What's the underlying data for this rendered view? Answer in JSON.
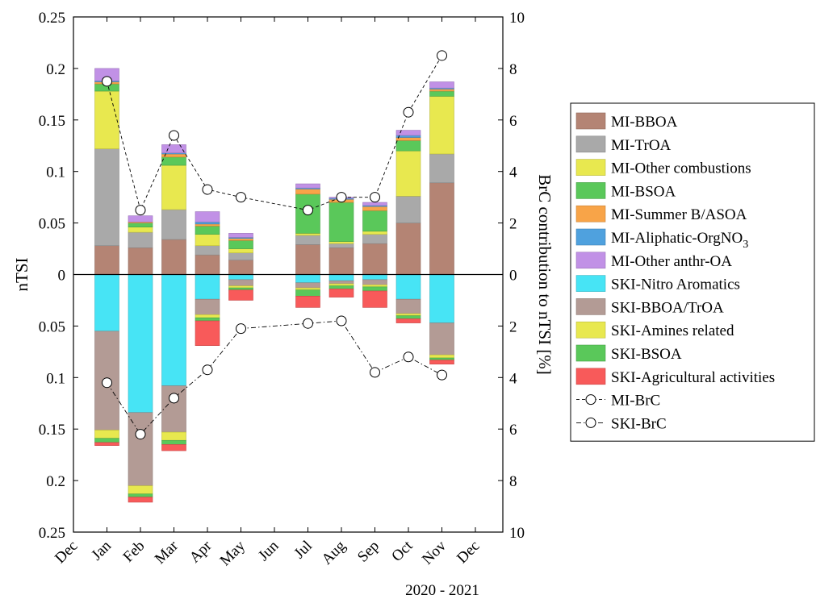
{
  "chart_data": {
    "type": "bar",
    "months": [
      "Dec",
      "Jan",
      "Feb",
      "Mar",
      "Apr",
      "May",
      "Jun",
      "Jul",
      "Aug",
      "Sep",
      "Oct",
      "Nov",
      "Dec"
    ],
    "xlabel": "2020 - 2021",
    "ylabel_left": "nTSI",
    "ylabel_right": "BrC contribution to nTSI [%]",
    "yticks_left": [
      "0.25",
      "0.2",
      "0.15",
      "0.1",
      "0.05",
      "0",
      "0.05",
      "0.1",
      "0.15",
      "0.2",
      "0.25"
    ],
    "yticks_right": [
      "10",
      "8",
      "6",
      "4",
      "2",
      "0",
      "2",
      "4",
      "6",
      "8",
      "10"
    ],
    "ylim_left": [
      -0.25,
      0.25
    ],
    "ylim_right": [
      -10,
      10
    ],
    "mi_components": [
      {
        "name": "MI-BBOA",
        "color": "#b48474"
      },
      {
        "name": "MI-TrOA",
        "color": "#a9a9a9"
      },
      {
        "name": "MI-Other combustions",
        "color": "#e8e84f"
      },
      {
        "name": "MI-BSOA",
        "color": "#5ac85a"
      },
      {
        "name": "MI-Summer B/ASOA",
        "color": "#f8a448"
      },
      {
        "name": "MI-Aliphatic-OrgNO3",
        "color": "#4fa1de"
      },
      {
        "name": "MI-Other anthr-OA",
        "color": "#c191e6"
      }
    ],
    "ski_components": [
      {
        "name": "SKI-Nitro Aromatics",
        "color": "#47e4f5"
      },
      {
        "name": "SKI-BBOA/TrOA",
        "color": "#b39b95"
      },
      {
        "name": "SKI-Amines related",
        "color": "#e8e84f"
      },
      {
        "name": "SKI-BSOA",
        "color": "#5ac85a"
      },
      {
        "name": "SKI-Agricultural activities",
        "color": "#f85a5a"
      }
    ],
    "mi_bars": [
      {
        "month": "Jan",
        "values": [
          0.028,
          0.094,
          0.056,
          0.007,
          0.002,
          0.001,
          0.012
        ]
      },
      {
        "month": "Feb",
        "values": [
          0.026,
          0.015,
          0.005,
          0.004,
          0.001,
          0.0,
          0.006
        ]
      },
      {
        "month": "Mar",
        "values": [
          0.034,
          0.029,
          0.043,
          0.008,
          0.003,
          0.001,
          0.008
        ]
      },
      {
        "month": "Apr",
        "values": [
          0.019,
          0.009,
          0.011,
          0.008,
          0.002,
          0.002,
          0.01
        ]
      },
      {
        "month": "May",
        "values": [
          0.014,
          0.007,
          0.004,
          0.008,
          0.002,
          0.001,
          0.004
        ]
      },
      {
        "month": "Jul",
        "values": [
          0.029,
          0.009,
          0.002,
          0.038,
          0.005,
          0.001,
          0.004
        ]
      },
      {
        "month": "Aug",
        "values": [
          0.026,
          0.004,
          0.002,
          0.038,
          0.003,
          0.001,
          0.001
        ]
      },
      {
        "month": "Sep",
        "values": [
          0.03,
          0.009,
          0.003,
          0.02,
          0.004,
          0.001,
          0.003
        ]
      },
      {
        "month": "Oct",
        "values": [
          0.05,
          0.026,
          0.044,
          0.01,
          0.003,
          0.002,
          0.005
        ]
      },
      {
        "month": "Nov",
        "values": [
          0.089,
          0.028,
          0.056,
          0.005,
          0.002,
          0.001,
          0.006
        ]
      }
    ],
    "ski_bars": [
      {
        "month": "Jan",
        "values": [
          0.055,
          0.096,
          0.008,
          0.004,
          0.003
        ]
      },
      {
        "month": "Feb",
        "values": [
          0.134,
          0.071,
          0.008,
          0.003,
          0.005
        ]
      },
      {
        "month": "Mar",
        "values": [
          0.108,
          0.045,
          0.008,
          0.004,
          0.006
        ]
      },
      {
        "month": "Apr",
        "values": [
          0.024,
          0.015,
          0.003,
          0.003,
          0.024
        ]
      },
      {
        "month": "May",
        "values": [
          0.005,
          0.006,
          0.002,
          0.002,
          0.01
        ]
      },
      {
        "month": "Jul",
        "values": [
          0.008,
          0.005,
          0.002,
          0.006,
          0.011
        ]
      },
      {
        "month": "Aug",
        "values": [
          0.006,
          0.003,
          0.002,
          0.003,
          0.008
        ]
      },
      {
        "month": "Sep",
        "values": [
          0.005,
          0.005,
          0.002,
          0.004,
          0.016
        ]
      },
      {
        "month": "Oct",
        "values": [
          0.024,
          0.014,
          0.002,
          0.003,
          0.004
        ]
      },
      {
        "month": "Nov",
        "values": [
          0.047,
          0.031,
          0.003,
          0.002,
          0.004
        ]
      }
    ],
    "series": [
      {
        "name": "MI-BrC",
        "style": "dashed",
        "months": [
          "Jan",
          "Feb",
          "Mar",
          "Apr",
          "May",
          "Jul",
          "Aug",
          "Sep",
          "Oct",
          "Nov"
        ],
        "values": [
          7.5,
          2.5,
          5.4,
          3.3,
          3.0,
          2.5,
          3.0,
          3.0,
          6.3,
          8.5
        ]
      },
      {
        "name": "SKI-BrC",
        "style": "dash-dot",
        "months": [
          "Jan",
          "Feb",
          "Mar",
          "Apr",
          "May",
          "Jul",
          "Aug",
          "Sep",
          "Oct",
          "Nov"
        ],
        "values": [
          -4.2,
          -6.2,
          -4.8,
          -3.7,
          -2.1,
          -1.9,
          -1.8,
          -3.8,
          -3.2,
          -3.9
        ]
      }
    ],
    "legend": [
      {
        "label": "MI-BBOA",
        "kind": "patch",
        "color": "#b48474"
      },
      {
        "label": "MI-TrOA",
        "kind": "patch",
        "color": "#a9a9a9"
      },
      {
        "label": "MI-Other combustions",
        "kind": "patch",
        "color": "#e8e84f"
      },
      {
        "label": "MI-BSOA",
        "kind": "patch",
        "color": "#5ac85a"
      },
      {
        "label": "MI-Summer B/ASOA",
        "kind": "patch",
        "color": "#f8a448"
      },
      {
        "label": "MI-Aliphatic-OrgNO",
        "sub": "3",
        "kind": "patch",
        "color": "#4fa1de"
      },
      {
        "label": "MI-Other anthr-OA",
        "kind": "patch",
        "color": "#c191e6"
      },
      {
        "label": "SKI-Nitro Aromatics",
        "kind": "patch",
        "color": "#47e4f5"
      },
      {
        "label": "SKI-BBOA/TrOA",
        "kind": "patch",
        "color": "#b39b95"
      },
      {
        "label": "SKI-Amines related",
        "kind": "patch",
        "color": "#e8e84f"
      },
      {
        "label": "SKI-BSOA",
        "kind": "patch",
        "color": "#5ac85a"
      },
      {
        "label": "SKI-Agricultural activities",
        "kind": "patch",
        "color": "#f85a5a"
      },
      {
        "label": "MI-BrC",
        "kind": "line",
        "dash": "dashed"
      },
      {
        "label": "SKI-BrC",
        "kind": "line",
        "dash": "dash-dot"
      }
    ],
    "legend_position": "right"
  }
}
